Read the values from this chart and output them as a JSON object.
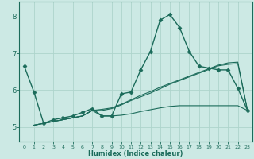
{
  "xlabel": "Humidex (Indice chaleur)",
  "ylabel": "",
  "bg_color": "#cce9e4",
  "line_color": "#1b6b5a",
  "grid_color": "#aed4cc",
  "axis_color": "#1b6b5a",
  "text_color": "#1b6b5a",
  "xlim": [
    -0.5,
    23.5
  ],
  "ylim": [
    4.6,
    8.4
  ],
  "yticks": [
    5,
    6,
    7,
    8
  ],
  "xticks": [
    0,
    1,
    2,
    3,
    4,
    5,
    6,
    7,
    8,
    9,
    10,
    11,
    12,
    13,
    14,
    15,
    16,
    17,
    18,
    19,
    20,
    21,
    22,
    23
  ],
  "series": [
    {
      "x": [
        0,
        1,
        2,
        3,
        4,
        5,
        6,
        7,
        8,
        9,
        10,
        11,
        12,
        13,
        14,
        15,
        16,
        17,
        18,
        19,
        20,
        21,
        22,
        23
      ],
      "y": [
        6.65,
        5.95,
        5.1,
        5.2,
        5.25,
        5.3,
        5.4,
        5.5,
        5.3,
        5.3,
        5.9,
        5.95,
        6.55,
        7.05,
        7.9,
        8.05,
        7.7,
        7.05,
        6.65,
        6.6,
        6.55,
        6.55,
        6.05,
        5.45
      ],
      "marker": "D",
      "markersize": 2.5,
      "linewidth": 1.0
    },
    {
      "x": [
        1,
        2,
        3,
        4,
        5,
        6,
        7,
        8,
        9,
        10,
        11,
        12,
        13,
        14,
        15,
        16,
        17,
        18,
        19,
        20,
        21,
        22,
        23
      ],
      "y": [
        5.05,
        5.1,
        5.15,
        5.2,
        5.25,
        5.3,
        5.45,
        5.45,
        5.5,
        5.6,
        5.72,
        5.82,
        5.92,
        6.04,
        6.16,
        6.26,
        6.36,
        6.46,
        6.56,
        6.66,
        6.7,
        6.72,
        5.45
      ],
      "marker": null,
      "markersize": 0,
      "linewidth": 0.8
    },
    {
      "x": [
        1,
        2,
        3,
        4,
        5,
        6,
        7,
        8,
        9,
        10,
        11,
        12,
        13,
        14,
        15,
        16,
        17,
        18,
        19,
        20,
        21,
        22,
        23
      ],
      "y": [
        5.05,
        5.1,
        5.15,
        5.2,
        5.25,
        5.3,
        5.45,
        5.48,
        5.52,
        5.62,
        5.74,
        5.86,
        5.96,
        6.08,
        6.18,
        6.28,
        6.38,
        6.48,
        6.58,
        6.68,
        6.74,
        6.76,
        5.45
      ],
      "marker": null,
      "markersize": 0,
      "linewidth": 0.8
    },
    {
      "x": [
        1,
        2,
        3,
        4,
        5,
        6,
        7,
        8,
        9,
        10,
        11,
        12,
        13,
        14,
        15,
        16,
        17,
        18,
        19,
        20,
        21,
        22,
        23
      ],
      "y": [
        5.05,
        5.1,
        5.15,
        5.2,
        5.25,
        5.3,
        5.45,
        5.3,
        5.3,
        5.32,
        5.36,
        5.42,
        5.47,
        5.52,
        5.56,
        5.58,
        5.58,
        5.58,
        5.58,
        5.58,
        5.58,
        5.58,
        5.45
      ],
      "marker": null,
      "markersize": 0,
      "linewidth": 0.8
    }
  ]
}
